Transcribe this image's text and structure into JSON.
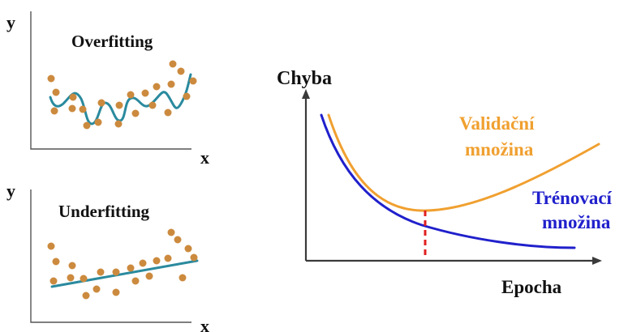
{
  "colors": {
    "points": "#cc8a3e",
    "model_curve": "#2a8a9e",
    "validation_curve": "#f0a030",
    "training_curve": "#2020cc",
    "minimum_marker": "#e02020",
    "axes": "#3a3a3a"
  },
  "overfitting_panel": {
    "title": "Overfitting",
    "x_label": "x",
    "y_label": "y"
  },
  "underfitting_panel": {
    "title": "Underfitting",
    "x_label": "x",
    "y_label": "y"
  },
  "error_chart": {
    "y_label": "Chyba",
    "x_label": "Epocha",
    "validation_label_line1": "Validační",
    "validation_label_line2": "množina",
    "training_label_line1": "Trénovací",
    "training_label_line2": "množina"
  }
}
